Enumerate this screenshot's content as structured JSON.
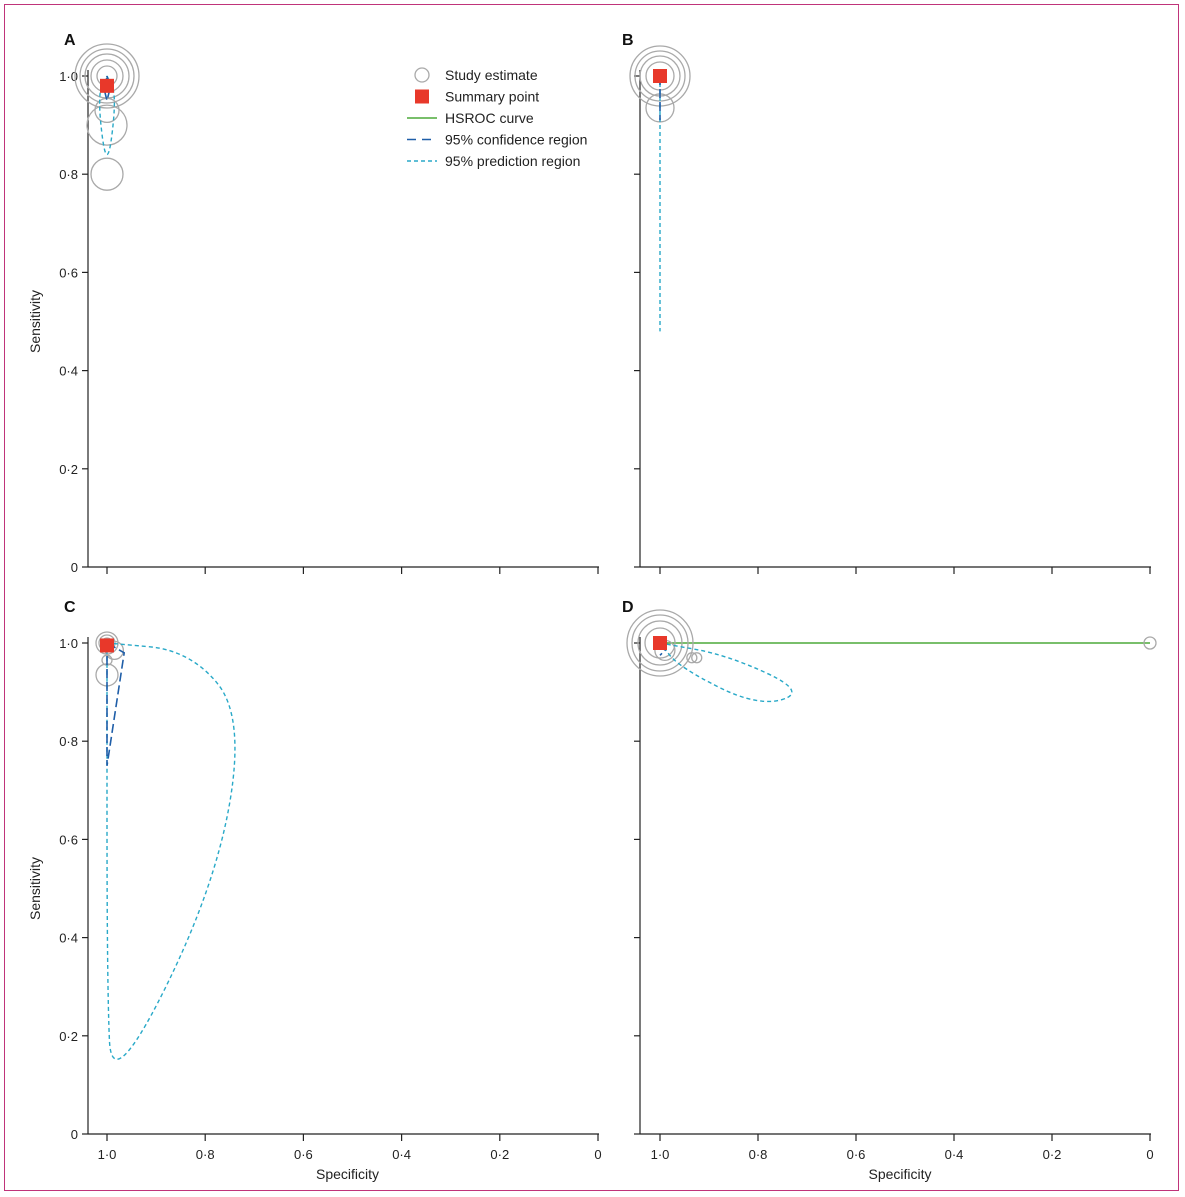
{
  "colors": {
    "study_circle": "#a9a9a9",
    "summary_point": "#e8382a",
    "hsroc_curve": "#4daa3a",
    "confidence_region": "#1f5ea8",
    "prediction_region": "#29a9c8",
    "axis": "#222222",
    "frame": "#c0347a"
  },
  "legend": {
    "items": [
      {
        "label": "Study estimate",
        "icon": "circle"
      },
      {
        "label": "Summary point",
        "icon": "square"
      },
      {
        "label": "HSROC curve",
        "icon": "solid-line"
      },
      {
        "label": "95% confidence region",
        "icon": "long-dash-line"
      },
      {
        "label": "95% prediction region",
        "icon": "short-dash-line"
      }
    ]
  },
  "chart_data": [
    {
      "panel": "A",
      "type": "scatter",
      "xlabel": "",
      "ylabel": "Sensitivity",
      "xlim": [
        1.0,
        0
      ],
      "ylim": [
        0,
        1.0
      ],
      "x_reversed": true,
      "x_ticks": [],
      "y_ticks": [
        "0",
        "0·2",
        "0·4",
        "0·6",
        "0·8",
        "1·0"
      ],
      "study_estimates": [
        {
          "spec": 1.0,
          "sens": 1.0,
          "r": 32
        },
        {
          "spec": 1.0,
          "sens": 1.0,
          "r": 27
        },
        {
          "spec": 1.0,
          "sens": 1.0,
          "r": 22
        },
        {
          "spec": 1.0,
          "sens": 1.0,
          "r": 16
        },
        {
          "spec": 1.0,
          "sens": 1.0,
          "r": 10
        },
        {
          "spec": 1.0,
          "sens": 0.93,
          "r": 12
        },
        {
          "spec": 1.0,
          "sens": 0.9,
          "r": 20
        },
        {
          "spec": 1.0,
          "sens": 0.8,
          "r": 16
        }
      ],
      "summary_point": {
        "spec": 1.0,
        "sens": 0.98
      },
      "confidence_region": [
        [
          1.0,
          1.0
        ],
        [
          0.995,
          0.97
        ],
        [
          1.0,
          0.95
        ],
        [
          1.005,
          0.97
        ],
        [
          1.0,
          1.0
        ]
      ],
      "prediction_region": [
        [
          1.0,
          1.0
        ],
        [
          0.98,
          0.96
        ],
        [
          1.0,
          0.8
        ],
        [
          1.02,
          0.96
        ],
        [
          1.0,
          1.0
        ]
      ],
      "hsroc_curve": []
    },
    {
      "panel": "B",
      "type": "scatter",
      "xlabel": "",
      "ylabel": "",
      "xlim": [
        1.0,
        0
      ],
      "ylim": [
        0,
        1.0
      ],
      "x_reversed": true,
      "x_ticks": [],
      "y_ticks": [],
      "study_estimates": [
        {
          "spec": 1.0,
          "sens": 1.0,
          "r": 30
        },
        {
          "spec": 1.0,
          "sens": 1.0,
          "r": 25
        },
        {
          "spec": 1.0,
          "sens": 1.0,
          "r": 20
        },
        {
          "spec": 1.0,
          "sens": 1.0,
          "r": 14
        },
        {
          "spec": 1.0,
          "sens": 0.935,
          "r": 14
        }
      ],
      "summary_point": {
        "spec": 1.0,
        "sens": 1.0
      },
      "confidence_region": [
        [
          1.0,
          1.0
        ],
        [
          1.0,
          0.91
        ]
      ],
      "prediction_region": [
        [
          1.0,
          1.0
        ],
        [
          1.0,
          0.48
        ]
      ],
      "hsroc_curve": []
    },
    {
      "panel": "C",
      "type": "scatter",
      "xlabel": "Specificity",
      "ylabel": "Sensitivity",
      "xlim": [
        1.0,
        0
      ],
      "ylim": [
        0,
        1.0
      ],
      "x_reversed": true,
      "x_ticks": [
        "1·0",
        "0·8",
        "0·6",
        "0·4",
        "0·2",
        "0"
      ],
      "y_ticks": [
        "0",
        "0·2",
        "0·4",
        "0·6",
        "0·8",
        "1·0"
      ],
      "study_estimates": [
        {
          "spec": 1.0,
          "sens": 1.0,
          "r": 11
        },
        {
          "spec": 1.0,
          "sens": 1.0,
          "r": 8
        },
        {
          "spec": 1.0,
          "sens": 1.0,
          "r": 5
        },
        {
          "spec": 0.985,
          "sens": 0.985,
          "r": 9
        },
        {
          "spec": 1.0,
          "sens": 0.965,
          "r": 5
        },
        {
          "spec": 1.0,
          "sens": 0.935,
          "r": 11
        }
      ],
      "summary_point": {
        "spec": 1.0,
        "sens": 0.995
      },
      "confidence_region": [
        [
          1.0,
          1.0
        ],
        [
          1.0,
          0.75
        ],
        [
          0.965,
          0.98
        ],
        [
          1.0,
          1.0
        ]
      ],
      "prediction_region": [
        [
          1.0,
          1.0
        ],
        [
          0.83,
          0.985
        ],
        [
          0.72,
          0.85
        ],
        [
          0.78,
          0.5
        ],
        [
          0.99,
          0.08
        ],
        [
          1.0,
          0.3
        ],
        [
          1.0,
          1.0
        ]
      ],
      "hsroc_curve": []
    },
    {
      "panel": "D",
      "type": "scatter",
      "xlabel": "Specificity",
      "ylabel": "",
      "xlim": [
        1.0,
        0
      ],
      "ylim": [
        0,
        1.0
      ],
      "x_reversed": true,
      "x_ticks": [
        "1·0",
        "0·8",
        "0·6",
        "0·4",
        "0·2",
        "0"
      ],
      "y_ticks": [],
      "study_estimates": [
        {
          "spec": 1.0,
          "sens": 1.0,
          "r": 33
        },
        {
          "spec": 1.0,
          "sens": 1.0,
          "r": 28
        },
        {
          "spec": 1.0,
          "sens": 1.0,
          "r": 22
        },
        {
          "spec": 1.0,
          "sens": 1.0,
          "r": 15
        },
        {
          "spec": 0.99,
          "sens": 0.985,
          "r": 10
        },
        {
          "spec": 0.935,
          "sens": 0.97,
          "r": 5
        },
        {
          "spec": 0.925,
          "sens": 0.97,
          "r": 5
        },
        {
          "spec": 0.0,
          "sens": 1.0,
          "r": 6
        }
      ],
      "summary_point": {
        "spec": 1.0,
        "sens": 1.0
      },
      "confidence_region": [
        [
          1.0,
          1.0
        ],
        [
          0.99,
          0.985
        ],
        [
          1.0,
          0.975
        ]
      ],
      "prediction_region": [
        [
          1.0,
          1.0
        ],
        [
          0.86,
          0.975
        ],
        [
          0.7,
          0.9
        ],
        [
          0.8,
          0.87
        ],
        [
          0.96,
          0.95
        ],
        [
          1.0,
          1.0
        ]
      ],
      "hsroc_curve": [
        [
          1.0,
          1.0
        ],
        [
          0.0,
          1.0
        ]
      ]
    }
  ]
}
